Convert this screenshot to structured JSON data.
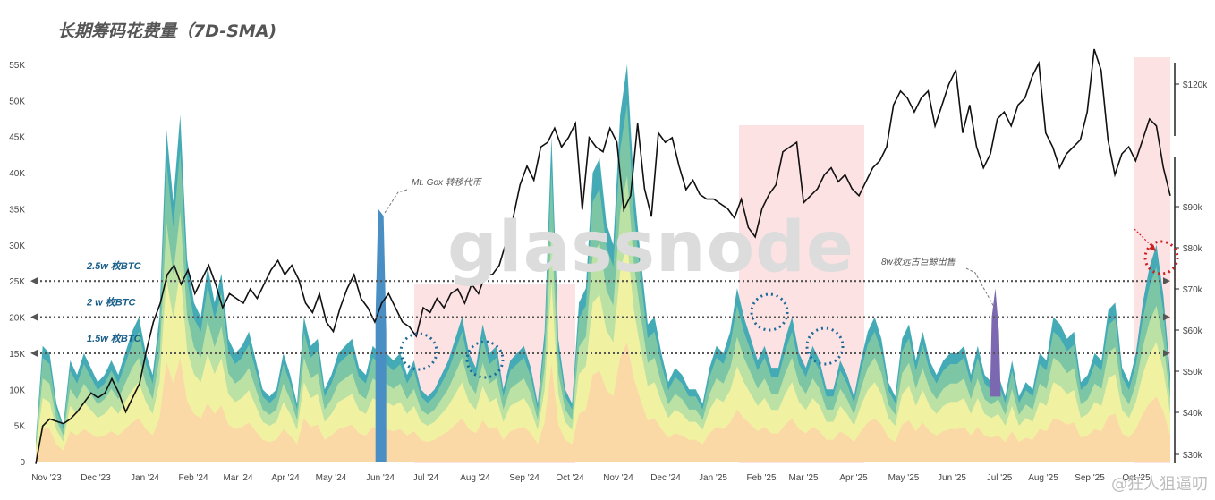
{
  "chart_data": {
    "type": "area",
    "title": "长期筹码花费量（7D-SMA)",
    "watermark": "glassnode",
    "footer": "@狂人狙逼叨",
    "x_ticks": [
      "Nov '23",
      "Dec '23",
      "Jan '24",
      "Feb '24",
      "Mar '24",
      "Apr '24",
      "May '24",
      "Jun '24",
      "Jul '24",
      "Aug '24",
      "Sep '24",
      "Oct '24",
      "Nov '24",
      "Dec '24",
      "Jan '25",
      "Feb '25",
      "Mar '25",
      "Apr '25",
      "May '25",
      "Jun '25",
      "Jul '25",
      "Aug '25",
      "Sep '25",
      "Oct '25"
    ],
    "y_left_ticks": [
      "0",
      "5K",
      "10K",
      "15K",
      "20K",
      "25K",
      "30K",
      "35K",
      "40K",
      "45K",
      "50K",
      "55K"
    ],
    "y_left_range": [
      0,
      55000
    ],
    "y_right_ticks": [
      "$30k",
      "$40k",
      "$50k",
      "$60k",
      "$70k",
      "$80k",
      "$90k",
      "$120k"
    ],
    "level_lines": [
      {
        "value": 25000,
        "label": "2.5w 枚BTC"
      },
      {
        "value": 20000,
        "label": "2 w 枚BTC"
      },
      {
        "value": 15000,
        "label": "1.5w 枚BTC"
      }
    ],
    "annotations": [
      {
        "text": "Mt. Gox 转移代币",
        "x_month": 7.3,
        "value": 35000
      },
      {
        "text": "8w枚远古巨鲸出售",
        "x_month": 20.2,
        "value": 24000
      }
    ],
    "colors": {
      "base": "#fbd7a6",
      "yellow": "#f2f2a0",
      "lightgreen": "#bfe3a4",
      "green": "#7fc7a4",
      "teal": "#3aa6b2",
      "blue": "#4a8fc4",
      "purple": "#7b68b0",
      "price": "#111111",
      "highlight": "#fde2e4",
      "dotted": "#555555",
      "circle_blue": "#1b6a9a",
      "circle_red": "#cc1f1f"
    },
    "series": [
      {
        "values": [
          3000,
          16000,
          15000,
          8000,
          5000,
          14000,
          12000,
          15000,
          13000,
          11000,
          12000,
          14000,
          12000,
          15000,
          18000,
          20000,
          15000,
          12000,
          20000,
          46000,
          36000,
          48000,
          28000,
          22000,
          20000,
          27000,
          22000,
          26000,
          17000,
          15000,
          16000,
          18000,
          14000,
          10000,
          9000,
          10000,
          15000,
          12000,
          8000,
          20000,
          16000,
          17000,
          10000,
          12000,
          15000,
          16000,
          17000,
          13000,
          12000,
          16000,
          15000,
          15000,
          14000,
          15000,
          12000,
          14000,
          10000,
          9000,
          10000,
          12000,
          14000,
          17000,
          20000,
          15000,
          13000,
          19000,
          15000,
          16000,
          10000,
          14000,
          15000,
          16000,
          13000,
          8000,
          18000,
          45000,
          17000,
          10000,
          8000,
          22000,
          24000,
          40000,
          42000,
          33000,
          30000,
          48000,
          55000,
          38000,
          28000,
          19000,
          20000,
          15000,
          11000,
          13000,
          12000,
          10000,
          10000,
          8000,
          13000,
          16000,
          15000,
          18000,
          24000,
          20000,
          17000,
          14000,
          16000,
          13000,
          13000,
          17000,
          20000,
          15000,
          13000,
          16000,
          14000,
          10000,
          10000,
          14000,
          12000,
          9000,
          14000,
          18000,
          20000,
          17000,
          11000,
          9000,
          17000,
          19000,
          14000,
          18000,
          14000,
          12000,
          14000,
          15000,
          15000,
          16000,
          12000,
          16000,
          12000,
          11000,
          12000,
          9000,
          14000,
          9000,
          11000,
          10000,
          15000,
          14000,
          20000,
          19000,
          17000,
          18000,
          11000,
          12000,
          15000,
          14000,
          21000,
          22000,
          13000,
          11000,
          15000,
          22000,
          27000,
          30000,
          23000,
          12000
        ]
      },
      {
        "name_hint": "purple spike",
        "x_month": 20.3,
        "value": 24000
      },
      {
        "name_hint": "blue spike",
        "x_month": 7.3,
        "value": 35000
      }
    ],
    "price": [
      28000,
      36000,
      37500,
      37000,
      36500,
      37500,
      39000,
      41000,
      43000,
      42000,
      43000,
      46000,
      43000,
      39000,
      42000,
      45000,
      52000,
      58000,
      62000,
      68000,
      70000,
      66000,
      69000,
      64000,
      67000,
      70000,
      66000,
      61000,
      64000,
      63000,
      62000,
      65000,
      63000,
      66000,
      69000,
      71000,
      68000,
      70000,
      67000,
      62000,
      60000,
      64000,
      58000,
      56000,
      61000,
      65000,
      68000,
      63000,
      61000,
      58000,
      62000,
      64000,
      61000,
      58000,
      57000,
      55000,
      61000,
      60000,
      63000,
      61000,
      64000,
      65000,
      62000,
      66000,
      64000,
      68000,
      68000,
      70000,
      75000,
      80000,
      87000,
      91000,
      88000,
      95000,
      96000,
      99000,
      95000,
      97000,
      100000,
      102000,
      97000,
      95000,
      94000,
      99000,
      96000,
      102000,
      104000,
      100000,
      105000,
      101000,
      98000,
      96000,
      97000,
      91000,
      86000,
      88000,
      85000,
      84000,
      84000,
      83000,
      82000,
      80000,
      84000,
      78000,
      76000,
      82000,
      85000,
      87000,
      94000,
      95000,
      96000,
      103000,
      104000,
      105000,
      107000,
      108000,
      106000,
      107000,
      105000,
      104000,
      106000,
      108000,
      109000,
      111000,
      117000,
      119000,
      118000,
      116000,
      118000,
      119000,
      114000,
      117000,
      120000,
      122000,
      113000,
      117000,
      111000,
      108000,
      110000,
      115000,
      116000,
      114000,
      117000,
      118000,
      121000,
      123000,
      113000,
      111000,
      108000,
      110000,
      111000,
      112000,
      116000,
      125000,
      122000,
      112000,
      107000,
      110000,
      111000,
      109000,
      112000,
      115000,
      114000,
      108000,
      104000
    ]
  }
}
